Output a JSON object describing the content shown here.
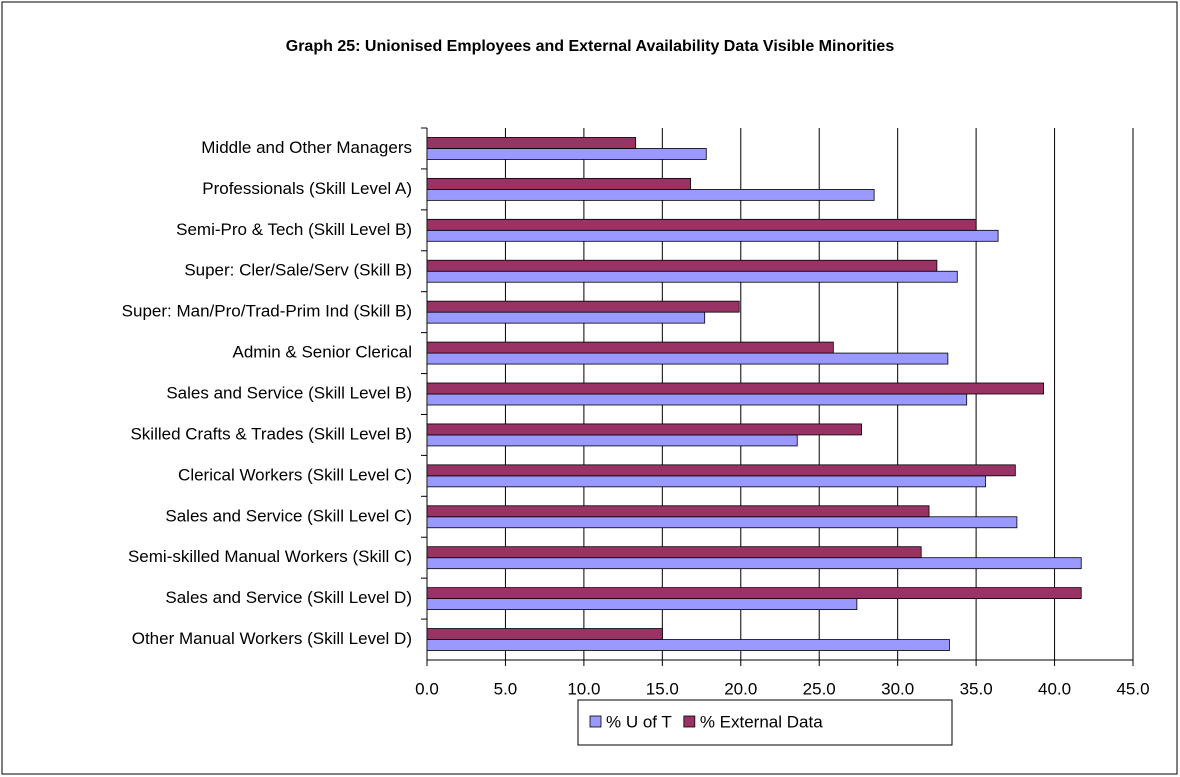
{
  "chart_data": {
    "type": "hbar",
    "title": "Graph 25: Unionised Employees and External Availability Data Visible Minorities",
    "categories": [
      "Middle and Other Managers",
      "Professionals (Skill Level A)",
      "Semi-Pro & Tech (Skill Level B)",
      "Super: Cler/Sale/Serv (Skill B)",
      "Super: Man/Pro/Trad-Prim Ind (Skill B)",
      "Admin & Senior Clerical",
      "Sales and Service (Skill Level B)",
      "Skilled Crafts & Trades (Skill Level B)",
      "Clerical Workers (Skill Level C)",
      "Sales and Service (Skill Level C)",
      "Semi-skilled Manual Workers (Skill C)",
      "Sales and Service (Skill Level D)",
      "Other Manual Workers (Skill Level D)"
    ],
    "series": [
      {
        "name": "% U of T",
        "color": "#9999ff",
        "values": [
          17.8,
          28.5,
          36.4,
          33.8,
          17.7,
          33.2,
          34.4,
          23.6,
          35.6,
          37.6,
          41.7,
          27.4,
          33.3
        ]
      },
      {
        "name": "% External Data",
        "color": "#993366",
        "values": [
          13.3,
          16.8,
          35.0,
          32.5,
          19.9,
          25.9,
          39.3,
          27.7,
          37.5,
          32.0,
          31.5,
          41.7,
          15.0
        ]
      }
    ],
    "xlim": [
      0,
      45
    ],
    "xticks": [
      {
        "value": 0,
        "label": "0.0"
      },
      {
        "value": 5,
        "label": "5.0"
      },
      {
        "value": 10,
        "label": "10.0"
      },
      {
        "value": 15,
        "label": "15.0"
      },
      {
        "value": 20,
        "label": "20.0"
      },
      {
        "value": 25,
        "label": "25.0"
      },
      {
        "value": 30,
        "label": "30.0"
      },
      {
        "value": 35,
        "label": "35.0"
      },
      {
        "value": 40,
        "label": "40.0"
      },
      {
        "value": 45,
        "label": "45.0"
      }
    ],
    "grid": true,
    "legend": "bottom"
  }
}
